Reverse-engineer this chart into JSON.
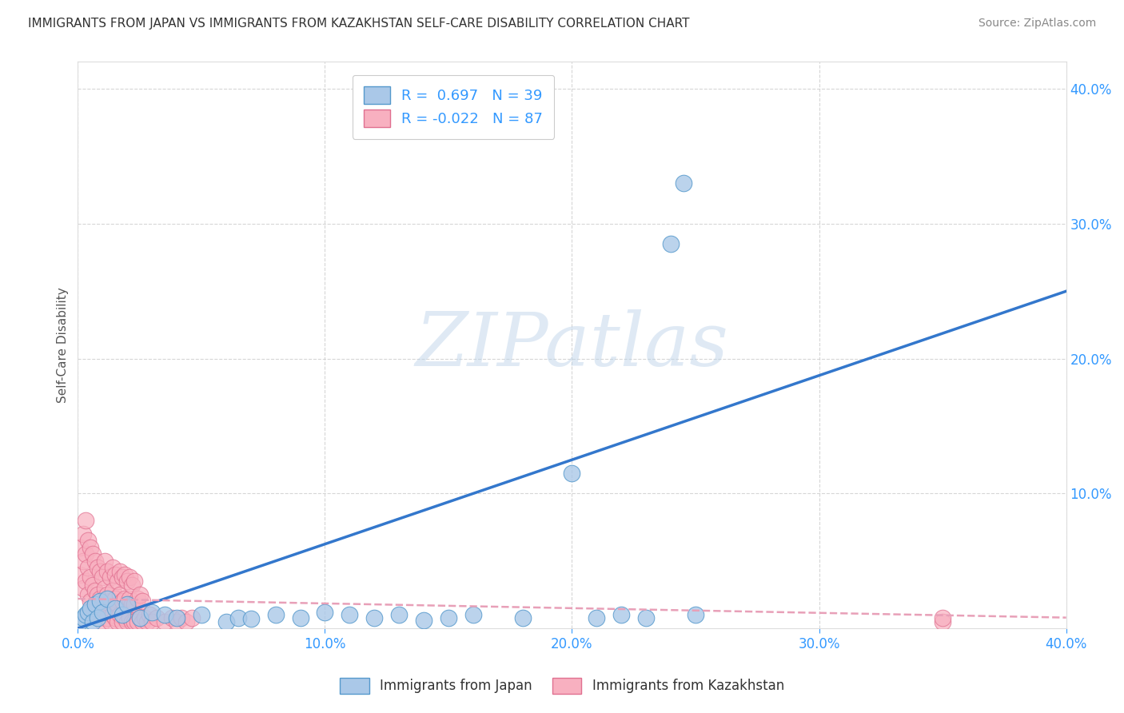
{
  "title": "IMMIGRANTS FROM JAPAN VS IMMIGRANTS FROM KAZAKHSTAN SELF-CARE DISABILITY CORRELATION CHART",
  "source": "Source: ZipAtlas.com",
  "ylabel": "Self-Care Disability",
  "watermark": "ZIPatlas",
  "xlim": [
    0.0,
    0.4
  ],
  "ylim": [
    0.0,
    0.42
  ],
  "xticks": [
    0.0,
    0.1,
    0.2,
    0.3,
    0.4
  ],
  "yticks": [
    0.1,
    0.2,
    0.3,
    0.4
  ],
  "japan_R": 0.697,
  "japan_N": 39,
  "kazakh_R": -0.022,
  "kazakh_N": 87,
  "japan_color": "#aac8e8",
  "japan_edge": "#5599cc",
  "kazakh_color": "#f8b0c0",
  "kazakh_edge": "#e07090",
  "japan_line_color": "#3377cc",
  "kazakh_line_color": "#e8a0b8",
  "legend_blue_color": "#3399ff",
  "title_color": "#333333",
  "grid_color": "#cccccc",
  "background_color": "#ffffff",
  "japan_x": [
    0.001,
    0.002,
    0.003,
    0.004,
    0.005,
    0.006,
    0.007,
    0.008,
    0.009,
    0.01,
    0.012,
    0.015,
    0.018,
    0.02,
    0.025,
    0.03,
    0.035,
    0.04,
    0.05,
    0.06,
    0.065,
    0.07,
    0.08,
    0.09,
    0.1,
    0.11,
    0.12,
    0.13,
    0.14,
    0.15,
    0.16,
    0.18,
    0.2,
    0.21,
    0.22,
    0.23,
    0.24,
    0.245,
    0.25
  ],
  "japan_y": [
    0.005,
    0.008,
    0.01,
    0.012,
    0.015,
    0.005,
    0.018,
    0.008,
    0.02,
    0.012,
    0.022,
    0.015,
    0.01,
    0.018,
    0.008,
    0.012,
    0.01,
    0.008,
    0.01,
    0.005,
    0.008,
    0.007,
    0.01,
    0.008,
    0.012,
    0.01,
    0.008,
    0.01,
    0.006,
    0.008,
    0.01,
    0.008,
    0.115,
    0.008,
    0.01,
    0.008,
    0.285,
    0.33,
    0.01
  ],
  "kazakh_x": [
    0.001,
    0.001,
    0.002,
    0.002,
    0.002,
    0.003,
    0.003,
    0.003,
    0.004,
    0.004,
    0.004,
    0.005,
    0.005,
    0.005,
    0.006,
    0.006,
    0.006,
    0.007,
    0.007,
    0.007,
    0.008,
    0.008,
    0.008,
    0.009,
    0.009,
    0.009,
    0.01,
    0.01,
    0.01,
    0.011,
    0.011,
    0.011,
    0.012,
    0.012,
    0.012,
    0.013,
    0.013,
    0.013,
    0.014,
    0.014,
    0.014,
    0.015,
    0.015,
    0.015,
    0.016,
    0.016,
    0.016,
    0.017,
    0.017,
    0.017,
    0.018,
    0.018,
    0.018,
    0.019,
    0.019,
    0.019,
    0.02,
    0.02,
    0.02,
    0.021,
    0.021,
    0.021,
    0.022,
    0.022,
    0.022,
    0.023,
    0.023,
    0.023,
    0.024,
    0.024,
    0.025,
    0.025,
    0.026,
    0.026,
    0.027,
    0.028,
    0.029,
    0.03,
    0.032,
    0.035,
    0.038,
    0.04,
    0.042,
    0.044,
    0.046,
    0.35,
    0.35
  ],
  "kazakh_y": [
    0.04,
    0.06,
    0.03,
    0.05,
    0.07,
    0.035,
    0.055,
    0.08,
    0.025,
    0.045,
    0.065,
    0.02,
    0.038,
    0.06,
    0.015,
    0.032,
    0.055,
    0.012,
    0.028,
    0.05,
    0.01,
    0.025,
    0.045,
    0.008,
    0.022,
    0.042,
    0.005,
    0.018,
    0.038,
    0.012,
    0.03,
    0.05,
    0.008,
    0.025,
    0.042,
    0.005,
    0.02,
    0.038,
    0.01,
    0.028,
    0.045,
    0.008,
    0.022,
    0.04,
    0.005,
    0.018,
    0.035,
    0.01,
    0.025,
    0.042,
    0.005,
    0.02,
    0.038,
    0.008,
    0.022,
    0.04,
    0.005,
    0.018,
    0.035,
    0.008,
    0.022,
    0.038,
    0.005,
    0.018,
    0.032,
    0.005,
    0.018,
    0.035,
    0.005,
    0.022,
    0.008,
    0.025,
    0.005,
    0.02,
    0.008,
    0.005,
    0.01,
    0.005,
    0.008,
    0.005,
    0.008,
    0.005,
    0.008,
    0.005,
    0.008,
    0.005,
    0.008
  ]
}
